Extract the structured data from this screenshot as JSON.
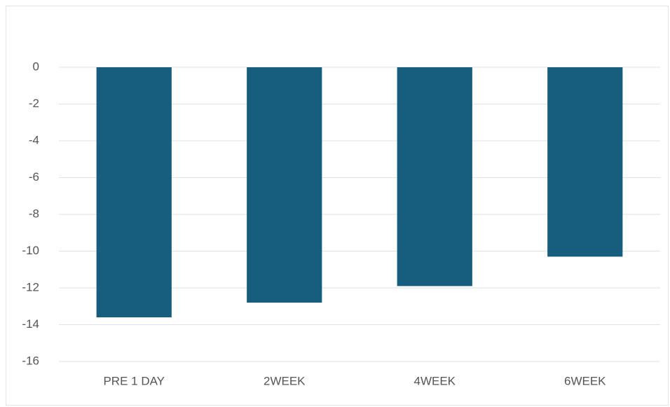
{
  "chart_data": {
    "type": "bar",
    "categories": [
      "PRE 1 DAY",
      "2WEEK",
      "4WEEK",
      "6WEEK"
    ],
    "values": [
      -13.6,
      -12.8,
      -11.9,
      -10.3
    ],
    "color": "#175e7e",
    "ylim": [
      -16,
      0
    ],
    "yticks": [
      0,
      -2,
      -4,
      -6,
      -8,
      -10,
      -12,
      -14,
      -16
    ],
    "grid": true
  }
}
